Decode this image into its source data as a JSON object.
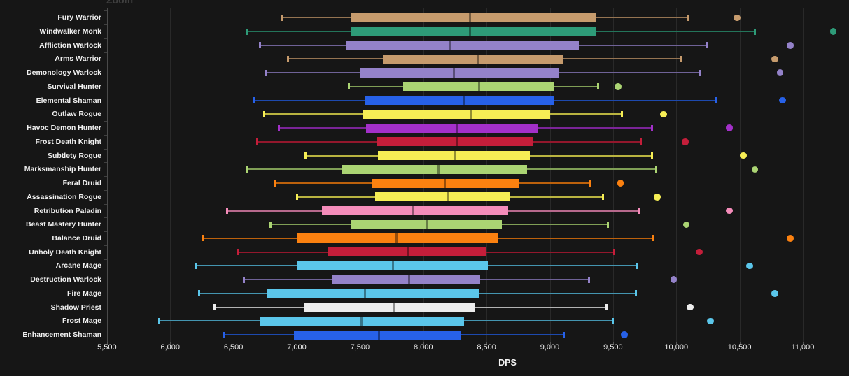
{
  "page": {
    "background": "#161616",
    "zoom_label": "Zoom"
  },
  "chart_data": {
    "type": "boxplot",
    "orientation": "horizontal",
    "title": "",
    "xlabel": "DPS",
    "grid": true,
    "x_axis": {
      "min": 5500,
      "max": 11000,
      "tick_step": 500,
      "ticks": [
        5500,
        6000,
        6500,
        7000,
        7500,
        8000,
        8500,
        9000,
        9500,
        10000,
        10500,
        11000
      ],
      "tick_labels": [
        "5,500",
        "6,000",
        "6,500",
        "7,000",
        "7,500",
        "8,000",
        "8,500",
        "9,000",
        "9,500",
        "10,000",
        "10,500",
        "11,000"
      ]
    },
    "class_colors": {
      "warrior": "#C69B6D",
      "monk": "#2E9B78",
      "warlock": "#9482C9",
      "hunter": "#ABD473",
      "shaman": "#2761E8",
      "rogue": "#F6EE55",
      "demon-hunter": "#A330C9",
      "death-knight": "#C41E3A",
      "druid": "#FB8110",
      "paladin": "#F48CBA",
      "mage": "#5BC6EA",
      "priest": "#EDEDED"
    },
    "rows": [
      {
        "label": "Fury Warrior",
        "class": "warrior",
        "low": 6880,
        "q1": 7430,
        "median": 8370,
        "q3": 9370,
        "high": 10090,
        "outliers": [
          10480
        ]
      },
      {
        "label": "Windwalker Monk",
        "class": "monk",
        "low": 6610,
        "q1": 7430,
        "median": 8370,
        "q3": 9370,
        "high": 10620,
        "outliers": [
          11240
        ]
      },
      {
        "label": "Affliction Warlock",
        "class": "warlock",
        "low": 6710,
        "q1": 7390,
        "median": 8210,
        "q3": 9230,
        "high": 10240,
        "outliers": [
          10900
        ]
      },
      {
        "label": "Arms Warrior",
        "class": "warrior",
        "low": 6930,
        "q1": 7680,
        "median": 8430,
        "q3": 9100,
        "high": 10040,
        "outliers": [
          10780
        ]
      },
      {
        "label": "Demonology Warlock",
        "class": "warlock",
        "low": 6760,
        "q1": 7500,
        "median": 8240,
        "q3": 9070,
        "high": 10190,
        "outliers": [
          10820
        ]
      },
      {
        "label": "Survival Hunter",
        "class": "hunter",
        "low": 7410,
        "q1": 7840,
        "median": 8440,
        "q3": 9030,
        "high": 9380,
        "outliers": [
          9540
        ]
      },
      {
        "label": "Elemental Shaman",
        "class": "shaman",
        "low": 6660,
        "q1": 7540,
        "median": 8320,
        "q3": 9030,
        "high": 10310,
        "outliers": [
          10840
        ]
      },
      {
        "label": "Outlaw Rogue",
        "class": "rogue",
        "low": 6740,
        "q1": 7520,
        "median": 8380,
        "q3": 9000,
        "high": 9570,
        "outliers": [
          9900
        ]
      },
      {
        "label": "Havoc Demon Hunter",
        "class": "demon-hunter",
        "low": 6860,
        "q1": 7550,
        "median": 8270,
        "q3": 8910,
        "high": 9810,
        "outliers": [
          10420
        ]
      },
      {
        "label": "Frost Death Knight",
        "class": "death-knight",
        "low": 6690,
        "q1": 7630,
        "median": 8270,
        "q3": 8870,
        "high": 9720,
        "outliers": [
          10070
        ]
      },
      {
        "label": "Subtlety Rogue",
        "class": "rogue",
        "low": 7070,
        "q1": 7640,
        "median": 8250,
        "q3": 8840,
        "high": 9810,
        "outliers": [
          10530
        ]
      },
      {
        "label": "Marksmanship Hunter",
        "class": "hunter",
        "low": 6610,
        "q1": 7360,
        "median": 8120,
        "q3": 8820,
        "high": 9840,
        "outliers": [
          10620
        ]
      },
      {
        "label": "Feral Druid",
        "class": "druid",
        "low": 6830,
        "q1": 7600,
        "median": 8170,
        "q3": 8760,
        "high": 9320,
        "outliers": [
          9560
        ]
      },
      {
        "label": "Assassination Rogue",
        "class": "rogue",
        "low": 7000,
        "q1": 7620,
        "median": 8200,
        "q3": 8690,
        "high": 9420,
        "outliers": [
          9850
        ]
      },
      {
        "label": "Retribution Paladin",
        "class": "paladin",
        "low": 6450,
        "q1": 7200,
        "median": 7920,
        "q3": 8670,
        "high": 9710,
        "outliers": [
          10420
        ]
      },
      {
        "label": "Beast Mastery Hunter",
        "class": "hunter",
        "low": 6790,
        "q1": 7430,
        "median": 8030,
        "q3": 8620,
        "high": 9460,
        "outliers": [
          10080
        ]
      },
      {
        "label": "Balance Druid",
        "class": "druid",
        "low": 6260,
        "q1": 7000,
        "median": 7790,
        "q3": 8590,
        "high": 9820,
        "outliers": [
          10900
        ]
      },
      {
        "label": "Unholy Death Knight",
        "class": "death-knight",
        "low": 6540,
        "q1": 7250,
        "median": 7880,
        "q3": 8500,
        "high": 9510,
        "outliers": [
          10180
        ]
      },
      {
        "label": "Arcane Mage",
        "class": "mage",
        "low": 6200,
        "q1": 7000,
        "median": 7760,
        "q3": 8510,
        "high": 9690,
        "outliers": [
          10580
        ]
      },
      {
        "label": "Destruction Warlock",
        "class": "warlock",
        "low": 6580,
        "q1": 7280,
        "median": 7890,
        "q3": 8450,
        "high": 9310,
        "outliers": [
          9980
        ]
      },
      {
        "label": "Fire Mage",
        "class": "mage",
        "low": 6230,
        "q1": 6770,
        "median": 7540,
        "q3": 8440,
        "high": 9680,
        "outliers": [
          10780
        ]
      },
      {
        "label": "Shadow Priest",
        "class": "priest",
        "low": 6350,
        "q1": 7060,
        "median": 7770,
        "q3": 8410,
        "high": 9450,
        "outliers": [
          10110
        ]
      },
      {
        "label": "Frost Mage",
        "class": "mage",
        "low": 5910,
        "q1": 6710,
        "median": 7510,
        "q3": 8320,
        "high": 9500,
        "outliers": [
          10270
        ]
      },
      {
        "label": "Enhancement Shaman",
        "class": "shaman",
        "low": 6420,
        "q1": 6980,
        "median": 7650,
        "q3": 8300,
        "high": 9110,
        "outliers": [
          9590
        ]
      }
    ]
  }
}
